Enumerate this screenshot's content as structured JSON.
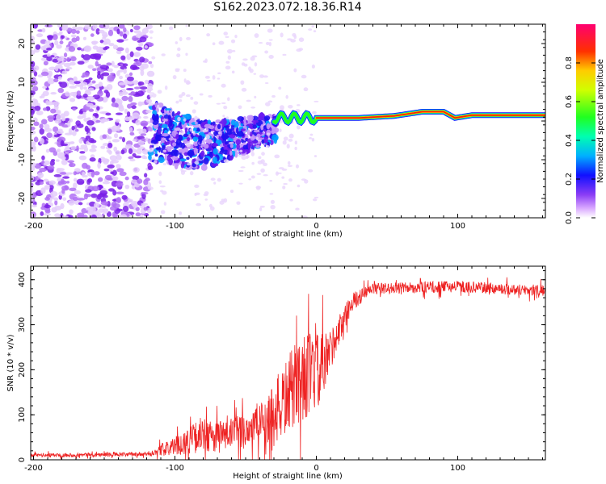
{
  "title": "S162.2023.072.18.36.R14",
  "chart_data": [
    {
      "type": "heatmap",
      "xlabel": "Height of straight line (km)",
      "ylabel": "Frequency (Hz)",
      "xlim": [
        -202,
        162
      ],
      "ylim": [
        -25,
        25
      ],
      "xticks": [
        -200,
        -100,
        0,
        100
      ],
      "yticks": [
        -20,
        -10,
        0,
        10,
        20
      ],
      "colorbar": {
        "label": "Normalized spectral amplitude",
        "range": [
          0,
          1
        ],
        "ticks": [
          0.0,
          0.2,
          0.4,
          0.6,
          0.8
        ],
        "colors": [
          "#ffffff",
          "#c060ff",
          "#6010f0",
          "#0000ff",
          "#00c0ff",
          "#00ff80",
          "#40ff00",
          "#ffff00",
          "#ff8000",
          "#ff0000",
          "#ff0060"
        ]
      },
      "regions": [
        {
          "x_range": [
            -202,
            -118
          ],
          "freq_range": [
            -25,
            25
          ],
          "amplitude": 0.15
        },
        {
          "x_range": [
            -118,
            -30
          ],
          "freq_range": [
            -12,
            8
          ],
          "amplitude": 0.3
        },
        {
          "x_range": [
            -30,
            0
          ],
          "freq_range": [
            -2,
            4
          ],
          "amplitude": 0.5
        },
        {
          "x_range": [
            0,
            162
          ],
          "freq_range": [
            0,
            3
          ],
          "amplitude": 0.95
        }
      ],
      "ridge": [
        {
          "x": 0,
          "y": 0.8
        },
        {
          "x": 30,
          "y": 0.8
        },
        {
          "x": 55,
          "y": 1.3
        },
        {
          "x": 75,
          "y": 2.4
        },
        {
          "x": 90,
          "y": 2.4
        },
        {
          "x": 98,
          "y": 0.8
        },
        {
          "x": 110,
          "y": 1.5
        },
        {
          "x": 162,
          "y": 1.5
        }
      ]
    },
    {
      "type": "line",
      "xlabel": "Height of straight line (km)",
      "ylabel": "SNR (10 * v/v)",
      "xlim": [
        -202,
        162
      ],
      "ylim": [
        0,
        430
      ],
      "xticks": [
        -200,
        -100,
        0,
        100
      ],
      "yticks": [
        0,
        100,
        200,
        300,
        400
      ],
      "color": "#ee2222",
      "envelope": [
        {
          "x": -202,
          "mean": 10,
          "spread": 8
        },
        {
          "x": -120,
          "mean": 12,
          "spread": 10
        },
        {
          "x": -100,
          "mean": 30,
          "spread": 40
        },
        {
          "x": -85,
          "mean": 50,
          "spread": 70
        },
        {
          "x": -60,
          "mean": 55,
          "spread": 70
        },
        {
          "x": -40,
          "mean": 80,
          "spread": 100
        },
        {
          "x": -25,
          "mean": 120,
          "spread": 160
        },
        {
          "x": -12,
          "mean": 180,
          "spread": 200
        },
        {
          "x": 5,
          "mean": 200,
          "spread": 160
        },
        {
          "x": 12,
          "mean": 260,
          "spread": 80
        },
        {
          "x": 25,
          "mean": 350,
          "spread": 40
        },
        {
          "x": 40,
          "mean": 380,
          "spread": 25
        },
        {
          "x": 100,
          "mean": 385,
          "spread": 25
        },
        {
          "x": 162,
          "mean": 375,
          "spread": 25
        }
      ]
    }
  ]
}
